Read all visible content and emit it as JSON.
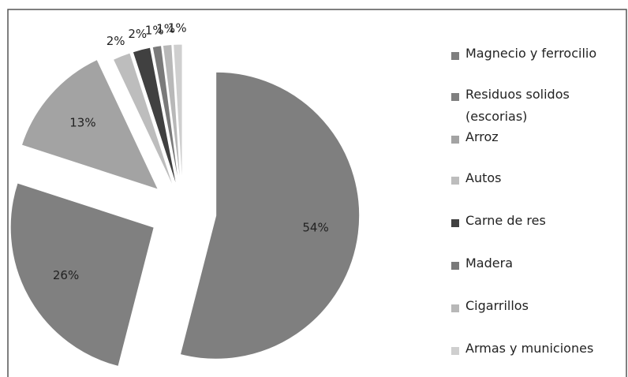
{
  "chart_data": {
    "type": "pie",
    "categories": [
      "Magnecio y ferrocilio",
      "Residuos solidos (escorias)",
      "Arroz",
      "Autos",
      "Carne de res",
      "Madera",
      "Cigarrillos",
      "Armas y municiones"
    ],
    "values": [
      54,
      26,
      13,
      2,
      2,
      1,
      1,
      1
    ],
    "value_labels": [
      "54%",
      "26%",
      "13%",
      "2%",
      "2%",
      "1%",
      "1%",
      "1%"
    ],
    "colors": [
      "#7f7f7f",
      "#808080",
      "#a3a3a3",
      "#bdbdbd",
      "#404040",
      "#7a7a7a",
      "#b8b8b8",
      "#cfcfcf"
    ],
    "legend": "right"
  }
}
